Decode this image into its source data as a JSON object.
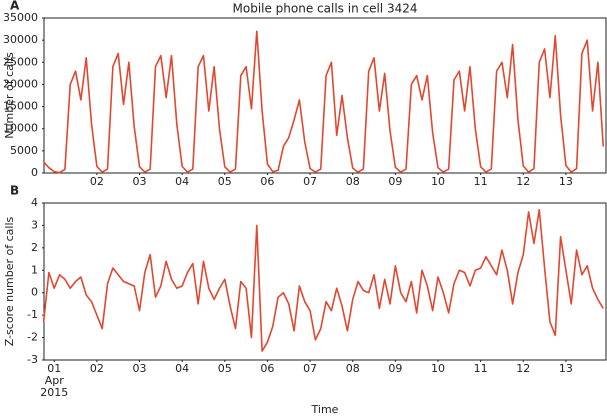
{
  "chart_data": [
    {
      "type": "line",
      "title": "Mobile phone calls in cell 3424",
      "panel_label": "A",
      "ylabel": "Number of calls",
      "x": [
        0.75,
        0.875,
        1,
        1.125,
        1.25,
        1.375,
        1.5,
        1.625,
        1.75,
        1.875,
        2,
        2.125,
        2.25,
        2.375,
        2.5,
        2.625,
        2.75,
        2.875,
        3,
        3.125,
        3.25,
        3.375,
        3.5,
        3.625,
        3.75,
        3.875,
        4,
        4.125,
        4.25,
        4.375,
        4.5,
        4.625,
        4.75,
        4.875,
        5,
        5.125,
        5.25,
        5.375,
        5.5,
        5.625,
        5.75,
        5.875,
        6,
        6.125,
        6.25,
        6.375,
        6.5,
        6.625,
        6.75,
        6.875,
        7,
        7.125,
        7.25,
        7.375,
        7.5,
        7.625,
        7.75,
        7.875,
        8,
        8.125,
        8.25,
        8.375,
        8.5,
        8.625,
        8.75,
        8.875,
        9,
        9.125,
        9.25,
        9.375,
        9.5,
        9.625,
        9.75,
        9.875,
        10,
        10.125,
        10.25,
        10.375,
        10.5,
        10.625,
        10.75,
        10.875,
        11,
        11.125,
        11.25,
        11.375,
        11.5,
        11.625,
        11.75,
        11.875,
        12,
        12.125,
        12.25,
        12.375,
        12.5,
        12.625,
        12.75,
        12.875,
        13,
        13.125,
        13.25,
        13.375,
        13.5,
        13.625,
        13.75,
        13.875
      ],
      "series": [
        {
          "color": "#e2472f",
          "values": [
            2500,
            1200,
            300,
            100,
            800,
            20000,
            23000,
            16500,
            26000,
            11000,
            1500,
            200,
            900,
            24000,
            27000,
            15500,
            25000,
            10500,
            1400,
            200,
            900,
            24000,
            26500,
            17000,
            26500,
            11000,
            1500,
            200,
            900,
            24000,
            26500,
            14000,
            24000,
            10000,
            1400,
            200,
            900,
            22000,
            24000,
            14500,
            32000,
            14000,
            2000,
            300,
            600,
            6000,
            8000,
            12000,
            16500,
            7000,
            1000,
            200,
            900,
            22000,
            25000,
            8500,
            17500,
            8000,
            1100,
            200,
            900,
            23000,
            26000,
            14000,
            22500,
            9500,
            1300,
            200,
            900,
            20000,
            22000,
            16500,
            22000,
            9000,
            1200,
            200,
            900,
            21000,
            23000,
            14000,
            24000,
            10000,
            1400,
            200,
            900,
            23000,
            25000,
            17000,
            29000,
            12000,
            1600,
            200,
            1000,
            25000,
            28000,
            17000,
            31000,
            13000,
            1700,
            200,
            1000,
            27000,
            30000,
            14000,
            25000,
            6000
          ]
        }
      ],
      "xlim": [
        0.76,
        13.94
      ],
      "ylim": [
        0,
        35000
      ],
      "xticks": [
        {
          "value": 2,
          "label": "02"
        },
        {
          "value": 3,
          "label": "03"
        },
        {
          "value": 4,
          "label": "04"
        },
        {
          "value": 5,
          "label": "05"
        },
        {
          "value": 6,
          "label": "06"
        },
        {
          "value": 7,
          "label": "07"
        },
        {
          "value": 8,
          "label": "08"
        },
        {
          "value": 9,
          "label": "09"
        },
        {
          "value": 10,
          "label": "10"
        },
        {
          "value": 11,
          "label": "11"
        },
        {
          "value": 12,
          "label": "12"
        },
        {
          "value": 13,
          "label": "13"
        }
      ],
      "yticks": [
        0,
        5000,
        10000,
        15000,
        20000,
        25000,
        30000,
        35000
      ],
      "grid": false
    },
    {
      "type": "line",
      "panel_label": "B",
      "ylabel": "Z-score number of calls",
      "xlabel": "Time",
      "x": [
        0.75,
        0.875,
        1,
        1.125,
        1.25,
        1.375,
        1.5,
        1.625,
        1.75,
        1.875,
        2,
        2.125,
        2.25,
        2.375,
        2.5,
        2.625,
        2.75,
        2.875,
        3,
        3.125,
        3.25,
        3.375,
        3.5,
        3.625,
        3.75,
        3.875,
        4,
        4.125,
        4.25,
        4.375,
        4.5,
        4.625,
        4.75,
        4.875,
        5,
        5.125,
        5.25,
        5.375,
        5.5,
        5.625,
        5.75,
        5.875,
        6,
        6.125,
        6.25,
        6.375,
        6.5,
        6.625,
        6.75,
        6.875,
        7,
        7.125,
        7.25,
        7.375,
        7.5,
        7.625,
        7.75,
        7.875,
        8,
        8.125,
        8.25,
        8.375,
        8.5,
        8.625,
        8.75,
        8.875,
        9,
        9.125,
        9.25,
        9.375,
        9.5,
        9.625,
        9.75,
        9.875,
        10,
        10.125,
        10.25,
        10.375,
        10.5,
        10.625,
        10.75,
        10.875,
        11,
        11.125,
        11.25,
        11.375,
        11.5,
        11.625,
        11.75,
        11.875,
        12,
        12.125,
        12.25,
        12.375,
        12.5,
        12.625,
        12.75,
        12.875,
        13,
        13.125,
        13.25,
        13.375,
        13.5,
        13.625,
        13.75,
        13.875
      ],
      "series": [
        {
          "color": "#e2472f",
          "values": [
            -1.3,
            0.9,
            0.2,
            0.8,
            0.6,
            0.2,
            0.5,
            0.7,
            -0.1,
            -0.4,
            -1.0,
            -1.6,
            0.4,
            1.1,
            0.8,
            0.5,
            0.4,
            0.3,
            -0.8,
            0.9,
            1.7,
            -0.2,
            0.3,
            1.4,
            0.6,
            0.2,
            0.3,
            0.9,
            1.3,
            -0.5,
            1.4,
            0.2,
            -0.3,
            0.2,
            0.6,
            -0.6,
            -1.6,
            0.5,
            0.2,
            -2.0,
            3.0,
            -2.6,
            -2.2,
            -1.5,
            -0.2,
            0.0,
            -0.5,
            -1.7,
            0.3,
            -0.4,
            -0.8,
            -2.1,
            -1.6,
            -0.4,
            -0.8,
            0.2,
            -0.6,
            -1.7,
            -0.3,
            0.5,
            0.1,
            0.0,
            0.8,
            -0.7,
            0.6,
            -0.5,
            1.2,
            0.0,
            -0.4,
            0.5,
            -0.9,
            1.0,
            0.3,
            -0.8,
            0.7,
            0.0,
            -0.9,
            0.4,
            1.0,
            0.9,
            0.3,
            1.0,
            1.1,
            1.6,
            1.2,
            0.8,
            1.9,
            1.0,
            -0.5,
            0.9,
            1.7,
            3.6,
            2.2,
            3.7,
            1.1,
            -1.3,
            -1.9,
            2.5,
            1.0,
            -0.5,
            1.9,
            0.8,
            1.2,
            0.2,
            -0.3,
            -0.7
          ]
        }
      ],
      "xlim": [
        0.76,
        13.94
      ],
      "ylim": [
        -3,
        4
      ],
      "xticks": [
        {
          "value": 1,
          "label": "01\nApr\n2015"
        },
        {
          "value": 2,
          "label": "02"
        },
        {
          "value": 3,
          "label": "03"
        },
        {
          "value": 4,
          "label": "04"
        },
        {
          "value": 5,
          "label": "05"
        },
        {
          "value": 6,
          "label": "06"
        },
        {
          "value": 7,
          "label": "07"
        },
        {
          "value": 8,
          "label": "08"
        },
        {
          "value": 9,
          "label": "09"
        },
        {
          "value": 10,
          "label": "10"
        },
        {
          "value": 11,
          "label": "11"
        },
        {
          "value": 12,
          "label": "12"
        },
        {
          "value": 13,
          "label": "13"
        }
      ],
      "yticks": [
        -3,
        -2,
        -1,
        0,
        1,
        2,
        3,
        4
      ],
      "grid": false
    }
  ]
}
